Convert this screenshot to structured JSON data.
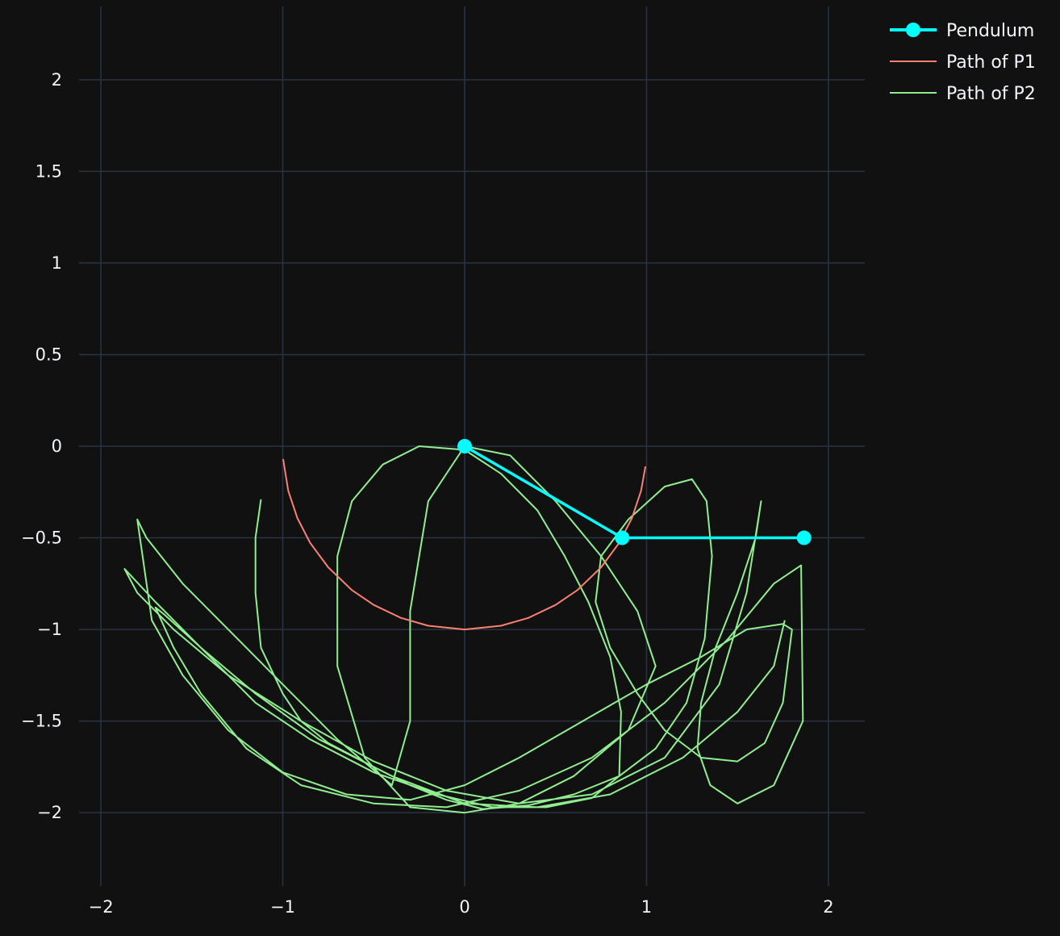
{
  "chart_data": {
    "type": "line",
    "grid": true,
    "xlim": [
      -2.2,
      2.2
    ],
    "ylim": [
      -2.4,
      2.4
    ],
    "x_ticks": [
      {
        "value": -2,
        "label": "−2"
      },
      {
        "value": -1,
        "label": "−1"
      },
      {
        "value": 0,
        "label": "0"
      },
      {
        "value": 1,
        "label": "1"
      },
      {
        "value": 2,
        "label": "2"
      }
    ],
    "y_ticks": [
      {
        "value": 2,
        "label": "2"
      },
      {
        "value": 1.5,
        "label": "1.5"
      },
      {
        "value": 1,
        "label": "1"
      },
      {
        "value": 0.5,
        "label": "0.5"
      },
      {
        "value": 0,
        "label": "0"
      },
      {
        "value": -0.5,
        "label": "−0.5"
      },
      {
        "value": -1,
        "label": "−1"
      },
      {
        "value": -1.5,
        "label": "−1.5"
      },
      {
        "value": -2,
        "label": "−2"
      }
    ],
    "legend_position": "top-right",
    "series": [
      {
        "name": "Pendulum",
        "mode": "lines+markers",
        "color": "#00ffff",
        "x": [
          0,
          0.866,
          1.866
        ],
        "y": [
          0,
          -0.5,
          -0.5
        ]
      },
      {
        "name": "Path of P1",
        "mode": "lines",
        "color": "#fa8072",
        "x": [
          -0.998,
          -0.97,
          -0.92,
          -0.85,
          -0.75,
          -0.62,
          -0.5,
          -0.35,
          -0.2,
          0,
          0.2,
          0.35,
          0.5,
          0.62,
          0.75,
          0.85,
          0.92,
          0.97,
          0.994
        ],
        "y": [
          -0.07,
          -0.243,
          -0.392,
          -0.527,
          -0.661,
          -0.785,
          -0.866,
          -0.937,
          -0.98,
          -1.0,
          -0.98,
          -0.937,
          -0.866,
          -0.785,
          -0.661,
          -0.527,
          -0.392,
          -0.243,
          -0.11
        ]
      },
      {
        "name": "Path of P2",
        "mode": "lines",
        "color": "#90ee90",
        "x": [
          -1.12,
          -1.15,
          -1.15,
          -1.12,
          -1.0,
          -0.9,
          -0.75,
          -0.5,
          -0.3,
          -0.1,
          0.1,
          0.35,
          0.6,
          0.85,
          1.05,
          1.22,
          1.32,
          1.36,
          1.33,
          1.25,
          1.1,
          0.9,
          0.75,
          0.72,
          0.8,
          0.95,
          1.1,
          1.3,
          1.5,
          1.65,
          1.75,
          1.8,
          1.75,
          1.55,
          1.3,
          1.0,
          0.65,
          0.3,
          0.0,
          -0.3,
          -0.65,
          -1.0,
          -1.3,
          -1.55,
          -1.72,
          -1.8,
          -1.75,
          -1.55,
          -1.3,
          -1.0,
          -0.7,
          -0.4,
          -0.3,
          -0.3,
          -0.2,
          0.0,
          0.25,
          0.5,
          0.75,
          0.95,
          1.05,
          0.9,
          0.6,
          0.3,
          0.0,
          -0.3,
          -0.55,
          -0.7,
          -0.7,
          -0.62,
          -0.45,
          -0.25,
          0.0,
          0.2,
          0.4,
          0.55,
          0.68,
          0.8,
          0.86,
          0.85,
          0.7,
          0.45,
          0.15,
          -0.15,
          -0.5,
          -0.85,
          -1.15,
          -1.45,
          -1.7,
          -1.87,
          -1.8,
          -1.6,
          -1.3,
          -0.9,
          -0.5,
          -0.1,
          0.3,
          0.7,
          1.1,
          1.4,
          1.55,
          1.63,
          1.6,
          1.5,
          1.38,
          1.3,
          1.28,
          1.35,
          1.5,
          1.7,
          1.86,
          1.85,
          1.7,
          1.45,
          1.1,
          0.7,
          0.3,
          -0.1,
          -0.5,
          -0.9,
          -1.2,
          -1.45,
          -1.6,
          -1.7,
          -1.65,
          -1.45,
          -1.15,
          -0.8,
          -0.4,
          0.0,
          0.4,
          0.8,
          1.2,
          1.5,
          1.7,
          1.76
        ],
        "y": [
          -0.29,
          -0.5,
          -0.8,
          -1.1,
          -1.35,
          -1.5,
          -1.62,
          -1.75,
          -1.85,
          -1.93,
          -1.98,
          -1.96,
          -1.9,
          -1.8,
          -1.65,
          -1.4,
          -1.05,
          -0.6,
          -0.3,
          -0.18,
          -0.22,
          -0.4,
          -0.6,
          -0.85,
          -1.1,
          -1.35,
          -1.55,
          -1.7,
          -1.72,
          -1.62,
          -1.4,
          -1.0,
          -0.97,
          -1.0,
          -1.15,
          -1.3,
          -1.5,
          -1.7,
          -1.85,
          -1.93,
          -1.9,
          -1.78,
          -1.55,
          -1.25,
          -0.95,
          -0.4,
          -0.5,
          -0.75,
          -1.0,
          -1.3,
          -1.6,
          -1.85,
          -1.5,
          -0.9,
          -0.3,
          0.0,
          -0.05,
          -0.3,
          -0.6,
          -0.9,
          -1.2,
          -1.55,
          -1.8,
          -1.95,
          -2.0,
          -1.97,
          -1.7,
          -1.2,
          -0.6,
          -0.3,
          -0.1,
          0.0,
          -0.02,
          -0.15,
          -0.35,
          -0.6,
          -0.85,
          -1.15,
          -1.45,
          -1.8,
          -1.92,
          -1.97,
          -1.97,
          -1.9,
          -1.78,
          -1.6,
          -1.4,
          -1.1,
          -0.85,
          -0.67,
          -0.8,
          -1.0,
          -1.25,
          -1.5,
          -1.72,
          -1.88,
          -1.95,
          -1.9,
          -1.7,
          -1.3,
          -0.8,
          -0.3,
          -0.5,
          -0.8,
          -1.1,
          -1.4,
          -1.65,
          -1.85,
          -1.95,
          -1.85,
          -1.5,
          -0.65,
          -0.75,
          -1.05,
          -1.4,
          -1.7,
          -1.88,
          -1.97,
          -1.95,
          -1.85,
          -1.65,
          -1.35,
          -1.1,
          -0.88,
          -0.92,
          -1.1,
          -1.35,
          -1.6,
          -1.8,
          -1.95,
          -1.97,
          -1.9,
          -1.7,
          -1.45,
          -1.2,
          -0.95
        ]
      }
    ]
  }
}
